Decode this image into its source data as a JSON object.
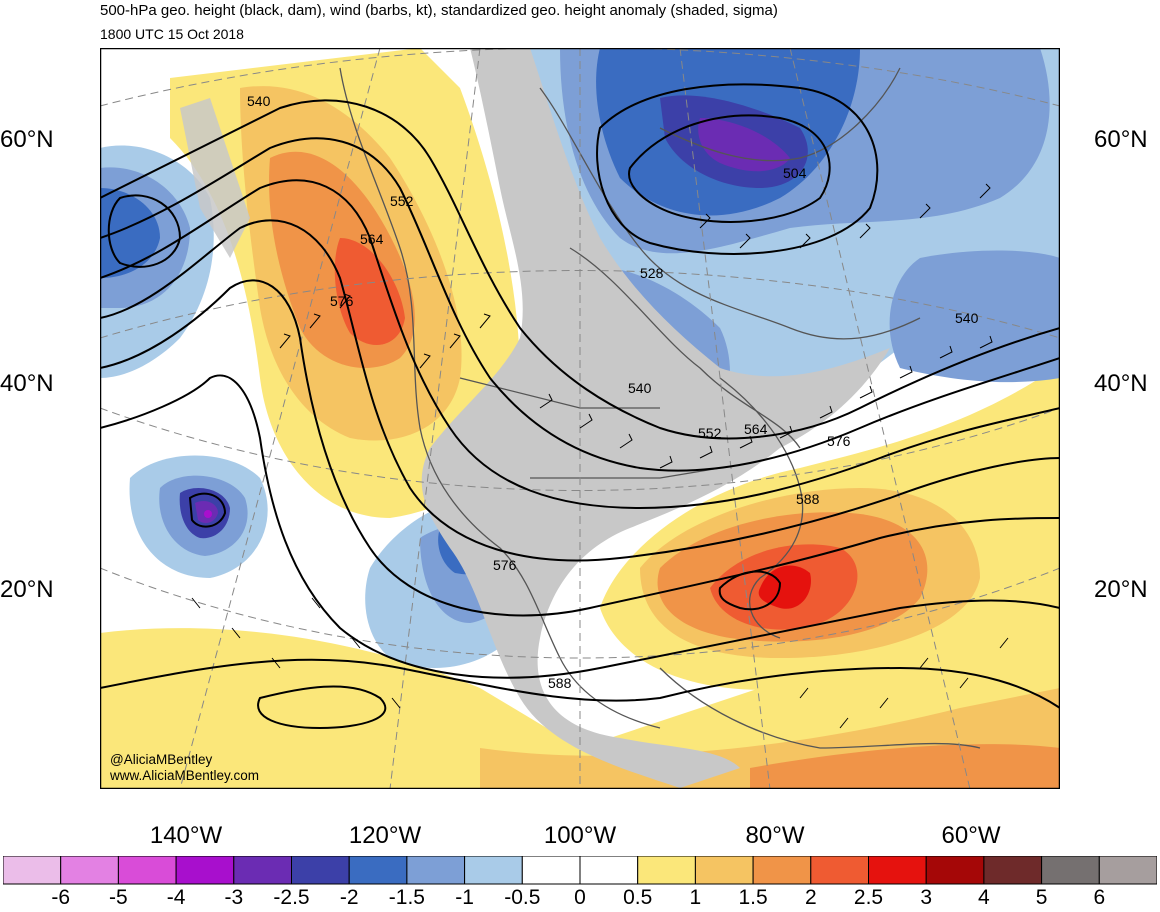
{
  "header": {
    "title": "500-hPa geo. height (black, dam), wind (barbs, kt), standardized geo. height anomaly (shaded, sigma)",
    "valid_time": "1800 UTC 15 Oct 2018"
  },
  "lat_labels": [
    "60°N",
    "40°N",
    "20°N"
  ],
  "lon_labels": [
    "140°W",
    "120°W",
    "100°W",
    "80°W",
    "60°W"
  ],
  "contour_labels": [
    "540",
    "552",
    "564",
    "576",
    "504",
    "528",
    "540",
    "540",
    "552",
    "564",
    "576",
    "588",
    "576",
    "588"
  ],
  "credit": {
    "handle": "@AliciaMBentley",
    "website": "www.AliciaMBentley.com"
  },
  "colorbar": {
    "tick_labels": [
      "-6",
      "-5",
      "-4",
      "-3",
      "-2.5",
      "-2",
      "-1.5",
      "-1",
      "-0.5",
      "0",
      "0.5",
      "1",
      "1.5",
      "2",
      "2.5",
      "3",
      "4",
      "5",
      "6"
    ],
    "colors": [
      "#ebbde9",
      "#e381e3",
      "#d94cd8",
      "#a80fcd",
      "#6b2cb3",
      "#3c40a8",
      "#3a6cc1",
      "#7d9fd6",
      "#a9cbe8",
      "#ffffff",
      "#ffffff",
      "#fbe77a",
      "#f5c462",
      "#f09448",
      "#ef5b32",
      "#e5120e",
      "#a50707",
      "#6e2a2a",
      "#757070",
      "#a69e9e"
    ]
  },
  "colors": {
    "land_masked": "#c8c8c8",
    "contour": "#000000",
    "coastline": "#555555"
  }
}
